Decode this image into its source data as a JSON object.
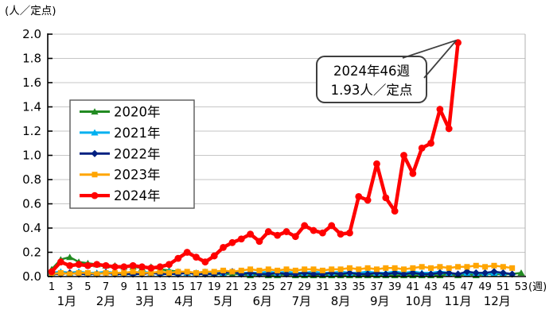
{
  "chart_data": {
    "type": "line",
    "title": "",
    "y_axis": {
      "title": "(人／定点)",
      "min": 0.0,
      "max": 2.0,
      "tick_step": 0.2,
      "tick_labels": [
        "0.0",
        "0.2",
        "0.4",
        "0.6",
        "0.8",
        "1.0",
        "1.2",
        "1.4",
        "1.6",
        "1.8",
        "2.0"
      ],
      "grid": true
    },
    "x_axis": {
      "unit_label": "(週)",
      "week_ticks": [
        1,
        3,
        5,
        7,
        9,
        11,
        13,
        15,
        17,
        19,
        21,
        23,
        25,
        27,
        29,
        31,
        33,
        35,
        37,
        39,
        41,
        43,
        45,
        47,
        49,
        51,
        53
      ],
      "month_labels": [
        "1月",
        "2月",
        "3月",
        "4月",
        "5月",
        "6月",
        "7月",
        "8月",
        "9月",
        "10月",
        "11月",
        "12月"
      ],
      "weeks_total": 53
    },
    "legend": {
      "position": "upper-left-inside",
      "entries": [
        "2020年",
        "2021年",
        "2022年",
        "2023年",
        "2024年"
      ]
    },
    "series": [
      {
        "name": "2020年",
        "color": "#228B22",
        "marker": "triangle",
        "start_week": 1,
        "values": [
          0.06,
          0.14,
          0.16,
          0.12,
          0.11,
          0.1,
          0.09,
          0.09,
          0.08,
          0.08,
          0.07,
          0.08,
          0.06,
          0.05,
          0.04,
          0.03,
          0.03,
          0.02,
          0.02,
          0.02,
          0.02,
          0.02,
          0.01,
          0.02,
          0.01,
          0.01,
          0.02,
          0.01,
          0.01,
          0.01,
          0.01,
          0.01,
          0.01,
          0.01,
          0.01,
          0.01,
          0.01,
          0.01,
          0.01,
          0.01,
          0.01,
          0.01,
          0.01,
          0.01,
          0.02,
          0.01,
          0.02,
          0.01,
          0.02,
          0.02,
          0.02,
          0.02,
          0.03
        ]
      },
      {
        "name": "2021年",
        "color": "#00B0F0",
        "marker": "triangle",
        "start_week": 1,
        "values": [
          0.03,
          0.04,
          0.03,
          0.04,
          0.03,
          0.03,
          0.04,
          0.03,
          0.03,
          0.03,
          0.04,
          0.03,
          0.03,
          0.04,
          0.03,
          0.03,
          0.03,
          0.04,
          0.03,
          0.03,
          0.04,
          0.03,
          0.03,
          0.03,
          0.04,
          0.03,
          0.04,
          0.03,
          0.03,
          0.04,
          0.03,
          0.03,
          0.04,
          0.03,
          0.03,
          0.04,
          0.03,
          0.03,
          0.04,
          0.03,
          0.04,
          0.03,
          0.03,
          0.04,
          0.03,
          0.02,
          0.03,
          0.03,
          0.02,
          0.03,
          0.03,
          0.02
        ]
      },
      {
        "name": "2022年",
        "color": "#002080",
        "marker": "diamond",
        "start_week": 1,
        "values": [
          0.02,
          0.02,
          0.03,
          0.02,
          0.02,
          0.02,
          0.03,
          0.02,
          0.02,
          0.02,
          0.02,
          0.03,
          0.02,
          0.02,
          0.02,
          0.03,
          0.02,
          0.02,
          0.02,
          0.03,
          0.04,
          0.02,
          0.03,
          0.02,
          0.02,
          0.03,
          0.02,
          0.02,
          0.03,
          0.02,
          0.02,
          0.03,
          0.02,
          0.03,
          0.02,
          0.02,
          0.03,
          0.02,
          0.03,
          0.02,
          0.03,
          0.02,
          0.02,
          0.03,
          0.03,
          0.02,
          0.04,
          0.03,
          0.03,
          0.04,
          0.03,
          0.02
        ]
      },
      {
        "name": "2023年",
        "color": "#FFA500",
        "marker": "square",
        "start_week": 1,
        "values": [
          0.02,
          0.03,
          0.02,
          0.03,
          0.03,
          0.02,
          0.03,
          0.03,
          0.03,
          0.04,
          0.03,
          0.03,
          0.04,
          0.03,
          0.04,
          0.04,
          0.03,
          0.04,
          0.04,
          0.05,
          0.04,
          0.05,
          0.06,
          0.05,
          0.06,
          0.05,
          0.06,
          0.05,
          0.06,
          0.06,
          0.05,
          0.06,
          0.06,
          0.07,
          0.06,
          0.07,
          0.06,
          0.07,
          0.07,
          0.06,
          0.07,
          0.08,
          0.07,
          0.08,
          0.07,
          0.08,
          0.08,
          0.09,
          0.08,
          0.09,
          0.08,
          0.07
        ]
      },
      {
        "name": "2024年",
        "color": "#FF0000",
        "marker": "circle",
        "start_week": 1,
        "values": [
          0.04,
          0.12,
          0.09,
          0.1,
          0.09,
          0.1,
          0.09,
          0.08,
          0.08,
          0.09,
          0.08,
          0.07,
          0.08,
          0.1,
          0.15,
          0.2,
          0.16,
          0.12,
          0.17,
          0.24,
          0.28,
          0.31,
          0.35,
          0.29,
          0.37,
          0.34,
          0.37,
          0.33,
          0.42,
          0.38,
          0.36,
          0.42,
          0.35,
          0.36,
          0.66,
          0.63,
          0.93,
          0.65,
          0.54,
          1.0,
          0.85,
          1.06,
          1.1,
          1.38,
          1.22,
          1.93
        ]
      }
    ],
    "annotation": {
      "lines": [
        "2024年46週",
        "1.93人／定点"
      ],
      "target_series": "2024年",
      "target_week": 46,
      "target_value": 1.93
    }
  }
}
